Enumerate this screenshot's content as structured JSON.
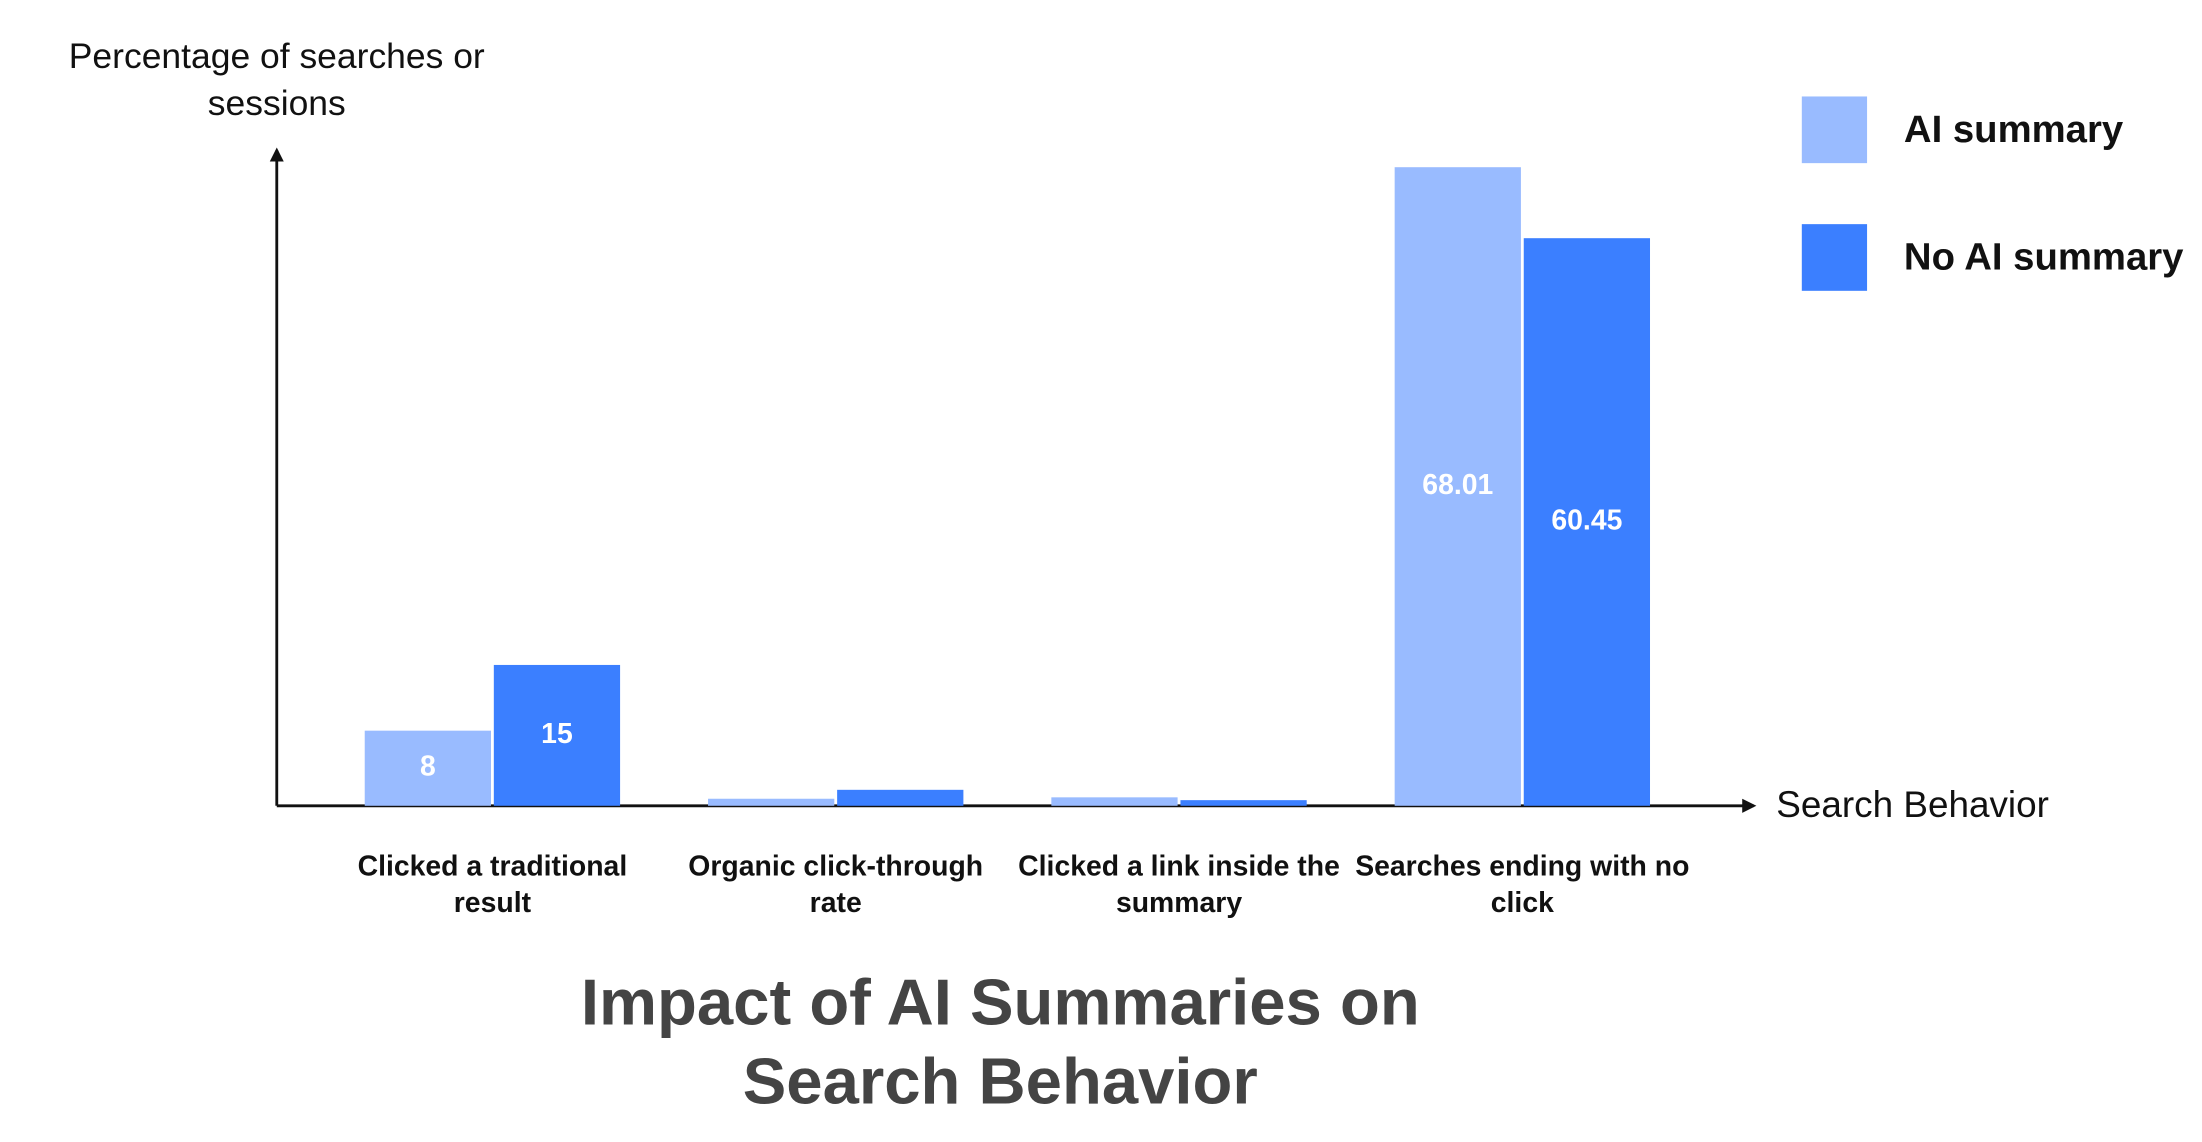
{
  "chart_data": {
    "type": "bar",
    "title": "Impact of AI Summaries on Search Behavior",
    "x_label": "Search Behavior",
    "y_label": "Percentage of searches or sessions",
    "categories": [
      "Clicked a traditional result",
      "Organic click-through rate",
      "Clicked a link inside the summary",
      "Searches ending with no click"
    ],
    "series": [
      {
        "name": "AI summary",
        "color": "#99bbff",
        "values": [
          8,
          0.75,
          0.9,
          68.01
        ]
      },
      {
        "name": "No AI summary",
        "color": "#3b7fff",
        "values": [
          15,
          1.7,
          0.6,
          60.45
        ]
      }
    ],
    "ylim": [
      0,
      69.5
    ],
    "legend": "top-right"
  }
}
